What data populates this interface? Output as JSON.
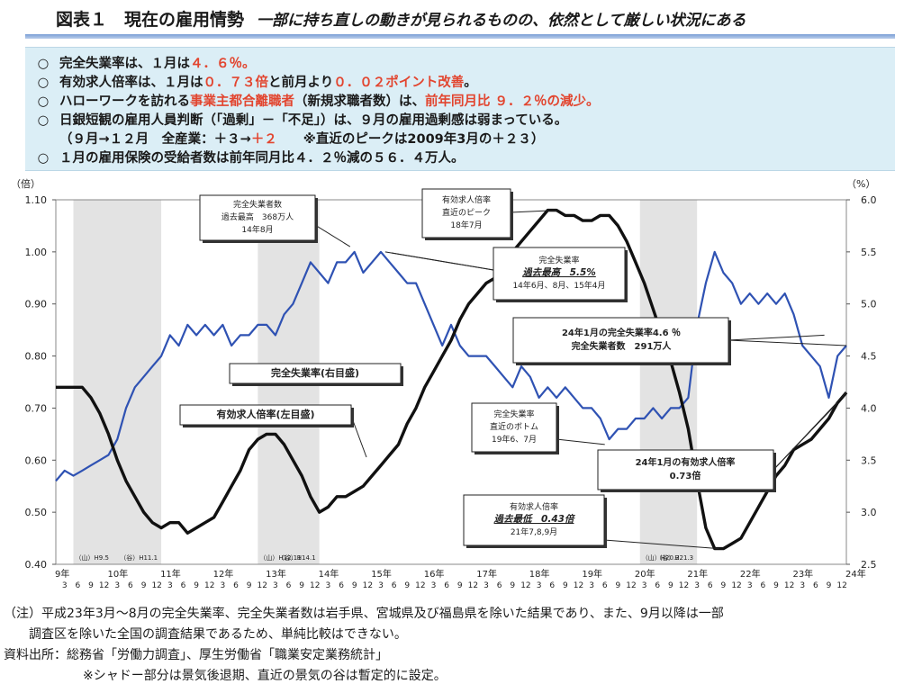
{
  "header": {
    "title": "図表１　現在の雇用情勢",
    "subtitle": "一部に持ち直しの動きが見られるものの、依然として厳しい状況にある"
  },
  "summary": [
    {
      "bullet": "○",
      "parts": [
        {
          "t": "完全失業率は、１月は"
        },
        {
          "t": "４．６％。",
          "red": true
        }
      ]
    },
    {
      "bullet": "○",
      "parts": [
        {
          "t": "有効求人倍率は、１月は"
        },
        {
          "t": "０．７３倍",
          "red": true
        },
        {
          "t": "と前月より"
        },
        {
          "t": "０．０２ポイント改善",
          "red": true
        },
        {
          "t": "。"
        }
      ]
    },
    {
      "bullet": "○",
      "parts": [
        {
          "t": "ハローワークを訪れる"
        },
        {
          "t": "事業主都合離職者",
          "red": true
        },
        {
          "t": "（新規求職者数）は、"
        },
        {
          "t": "前年同月比 ９．２％の減少。",
          "red": true
        }
      ]
    },
    {
      "bullet": "○",
      "parts": [
        {
          "t": "日銀短観の雇用人員判断（「過剰」－「不足」）は、９月の雇用過剰感は弱まっている。"
        }
      ]
    },
    {
      "bullet": "",
      "parts": [
        {
          "t": "（９月→１２月　全産業：＋３→"
        },
        {
          "t": "＋２",
          "red": true
        },
        {
          "t": "　　※直近のピークは2009年3月の＋２３）"
        }
      ]
    },
    {
      "bullet": "○",
      "parts": [
        {
          "t": "１月の雇用保険の受給者数は前年同月比４．２％減の５６．４万人。"
        }
      ]
    }
  ],
  "chart_data": {
    "type": "line",
    "left_axis": {
      "unit": "（倍）",
      "range": [
        0.4,
        1.1
      ],
      "ticks": [
        "0.40",
        "0.50",
        "0.60",
        "0.70",
        "0.80",
        "0.90",
        "1.00",
        "1.10"
      ]
    },
    "right_axis": {
      "unit": "（%）",
      "range": [
        2.5,
        6.0
      ],
      "ticks": [
        "2.5",
        "3.0",
        "3.5",
        "4.0",
        "4.5",
        "5.0",
        "5.5",
        "6.0"
      ]
    },
    "x_start": "1997-01",
    "x_end": "2012-01",
    "year_labels": [
      "9年",
      "10年",
      "11年",
      "12年",
      "13年",
      "14年",
      "15年",
      "16年",
      "17年",
      "18年",
      "19年",
      "20年",
      "21年",
      "22年",
      "23年",
      "24年"
    ],
    "month_ticks": [
      "3",
      "6",
      "9",
      "12"
    ],
    "shading": [
      {
        "from": "1997-05",
        "to": "1999-01",
        "peak_label": "（山）H9.5",
        "trough_label": "（谷）H11.1"
      },
      {
        "from": "2000-11",
        "to": "2002-01",
        "peak_label": "（山）H12.11",
        "trough_label": "（谷）H14.1"
      },
      {
        "from": "2008-02",
        "to": "2009-03",
        "peak_label": "（山）H20.2",
        "trough_label": "（谷）H21.3"
      }
    ],
    "series": [
      {
        "name": "完全失業率(右目盛)",
        "axis": "right",
        "color": "#2f52b3",
        "points": [
          [
            "1997-01",
            3.3
          ],
          [
            "1997-03",
            3.4
          ],
          [
            "1997-05",
            3.35
          ],
          [
            "1997-07",
            3.4
          ],
          [
            "1997-09",
            3.45
          ],
          [
            "1997-11",
            3.5
          ],
          [
            "1998-01",
            3.55
          ],
          [
            "1998-03",
            3.7
          ],
          [
            "1998-05",
            4.0
          ],
          [
            "1998-07",
            4.2
          ],
          [
            "1998-09",
            4.3
          ],
          [
            "1998-11",
            4.4
          ],
          [
            "1999-01",
            4.5
          ],
          [
            "1999-03",
            4.7
          ],
          [
            "1999-05",
            4.6
          ],
          [
            "1999-07",
            4.8
          ],
          [
            "1999-09",
            4.7
          ],
          [
            "1999-11",
            4.8
          ],
          [
            "2000-01",
            4.7
          ],
          [
            "2000-03",
            4.8
          ],
          [
            "2000-05",
            4.6
          ],
          [
            "2000-07",
            4.7
          ],
          [
            "2000-09",
            4.7
          ],
          [
            "2000-11",
            4.8
          ],
          [
            "2001-01",
            4.8
          ],
          [
            "2001-03",
            4.7
          ],
          [
            "2001-05",
            4.9
          ],
          [
            "2001-07",
            5.0
          ],
          [
            "2001-09",
            5.2
          ],
          [
            "2001-11",
            5.4
          ],
          [
            "2002-01",
            5.3
          ],
          [
            "2002-03",
            5.2
          ],
          [
            "2002-05",
            5.4
          ],
          [
            "2002-07",
            5.4
          ],
          [
            "2002-09",
            5.5
          ],
          [
            "2002-11",
            5.3
          ],
          [
            "2003-01",
            5.4
          ],
          [
            "2003-03",
            5.5
          ],
          [
            "2003-05",
            5.4
          ],
          [
            "2003-07",
            5.3
          ],
          [
            "2003-09",
            5.2
          ],
          [
            "2003-11",
            5.2
          ],
          [
            "2004-01",
            5.0
          ],
          [
            "2004-03",
            4.8
          ],
          [
            "2004-05",
            4.6
          ],
          [
            "2004-07",
            4.8
          ],
          [
            "2004-09",
            4.6
          ],
          [
            "2004-11",
            4.5
          ],
          [
            "2005-01",
            4.5
          ],
          [
            "2005-03",
            4.5
          ],
          [
            "2005-05",
            4.4
          ],
          [
            "2005-07",
            4.3
          ],
          [
            "2005-09",
            4.2
          ],
          [
            "2005-11",
            4.4
          ],
          [
            "2006-01",
            4.3
          ],
          [
            "2006-03",
            4.1
          ],
          [
            "2006-05",
            4.2
          ],
          [
            "2006-07",
            4.1
          ],
          [
            "2006-09",
            4.2
          ],
          [
            "2006-11",
            4.1
          ],
          [
            "2007-01",
            4.0
          ],
          [
            "2007-03",
            4.0
          ],
          [
            "2007-05",
            3.9
          ],
          [
            "2007-07",
            3.7
          ],
          [
            "2007-09",
            3.8
          ],
          [
            "2007-11",
            3.8
          ],
          [
            "2008-01",
            3.9
          ],
          [
            "2008-03",
            3.9
          ],
          [
            "2008-05",
            4.0
          ],
          [
            "2008-07",
            3.9
          ],
          [
            "2008-09",
            4.0
          ],
          [
            "2008-11",
            4.0
          ],
          [
            "2009-01",
            4.1
          ],
          [
            "2009-03",
            4.8
          ],
          [
            "2009-05",
            5.2
          ],
          [
            "2009-07",
            5.5
          ],
          [
            "2009-09",
            5.3
          ],
          [
            "2009-11",
            5.2
          ],
          [
            "2010-01",
            5.0
          ],
          [
            "2010-03",
            5.1
          ],
          [
            "2010-05",
            5.0
          ],
          [
            "2010-07",
            5.1
          ],
          [
            "2010-09",
            5.0
          ],
          [
            "2010-11",
            5.1
          ],
          [
            "2011-01",
            4.9
          ],
          [
            "2011-03",
            4.6
          ],
          [
            "2011-05",
            4.5
          ],
          [
            "2011-07",
            4.4
          ],
          [
            "2011-09",
            4.1
          ],
          [
            "2011-11",
            4.5
          ],
          [
            "2012-01",
            4.6
          ]
        ]
      },
      {
        "name": "有効求人倍率(左目盛)",
        "axis": "left",
        "color": "#111111",
        "points": [
          [
            "1997-01",
            0.74
          ],
          [
            "1997-07",
            0.74
          ],
          [
            "1997-09",
            0.72
          ],
          [
            "1997-11",
            0.69
          ],
          [
            "1998-01",
            0.65
          ],
          [
            "1998-03",
            0.6
          ],
          [
            "1998-05",
            0.56
          ],
          [
            "1998-07",
            0.53
          ],
          [
            "1998-09",
            0.5
          ],
          [
            "1998-11",
            0.48
          ],
          [
            "1999-01",
            0.47
          ],
          [
            "1999-03",
            0.48
          ],
          [
            "1999-05",
            0.48
          ],
          [
            "1999-07",
            0.46
          ],
          [
            "1999-09",
            0.47
          ],
          [
            "1999-11",
            0.48
          ],
          [
            "2000-01",
            0.49
          ],
          [
            "2000-03",
            0.52
          ],
          [
            "2000-05",
            0.55
          ],
          [
            "2000-07",
            0.58
          ],
          [
            "2000-09",
            0.62
          ],
          [
            "2000-11",
            0.64
          ],
          [
            "2001-01",
            0.65
          ],
          [
            "2001-03",
            0.65
          ],
          [
            "2001-05",
            0.63
          ],
          [
            "2001-07",
            0.6
          ],
          [
            "2001-09",
            0.57
          ],
          [
            "2001-11",
            0.53
          ],
          [
            "2002-01",
            0.5
          ],
          [
            "2002-03",
            0.51
          ],
          [
            "2002-05",
            0.53
          ],
          [
            "2002-07",
            0.53
          ],
          [
            "2002-09",
            0.54
          ],
          [
            "2002-11",
            0.55
          ],
          [
            "2003-01",
            0.57
          ],
          [
            "2003-03",
            0.59
          ],
          [
            "2003-05",
            0.61
          ],
          [
            "2003-07",
            0.63
          ],
          [
            "2003-09",
            0.67
          ],
          [
            "2003-11",
            0.7
          ],
          [
            "2004-01",
            0.74
          ],
          [
            "2004-03",
            0.77
          ],
          [
            "2004-05",
            0.8
          ],
          [
            "2004-07",
            0.83
          ],
          [
            "2004-09",
            0.87
          ],
          [
            "2004-11",
            0.9
          ],
          [
            "2005-01",
            0.92
          ],
          [
            "2005-03",
            0.94
          ],
          [
            "2005-05",
            0.95
          ],
          [
            "2005-07",
            0.97
          ],
          [
            "2005-09",
            1.0
          ],
          [
            "2005-11",
            1.02
          ],
          [
            "2006-01",
            1.04
          ],
          [
            "2006-03",
            1.06
          ],
          [
            "2006-05",
            1.08
          ],
          [
            "2006-07",
            1.08
          ],
          [
            "2006-09",
            1.07
          ],
          [
            "2006-11",
            1.07
          ],
          [
            "2007-01",
            1.06
          ],
          [
            "2007-03",
            1.06
          ],
          [
            "2007-05",
            1.07
          ],
          [
            "2007-07",
            1.07
          ],
          [
            "2007-09",
            1.05
          ],
          [
            "2007-11",
            1.02
          ],
          [
            "2008-01",
            0.98
          ],
          [
            "2008-03",
            0.94
          ],
          [
            "2008-05",
            0.89
          ],
          [
            "2008-07",
            0.84
          ],
          [
            "2008-09",
            0.79
          ],
          [
            "2008-11",
            0.73
          ],
          [
            "2009-01",
            0.66
          ],
          [
            "2009-03",
            0.56
          ],
          [
            "2009-05",
            0.47
          ],
          [
            "2009-07",
            0.43
          ],
          [
            "2009-09",
            0.43
          ],
          [
            "2009-11",
            0.44
          ],
          [
            "2010-01",
            0.45
          ],
          [
            "2010-03",
            0.48
          ],
          [
            "2010-05",
            0.51
          ],
          [
            "2010-07",
            0.54
          ],
          [
            "2010-09",
            0.57
          ],
          [
            "2010-11",
            0.59
          ],
          [
            "2011-01",
            0.62
          ],
          [
            "2011-03",
            0.63
          ],
          [
            "2011-05",
            0.64
          ],
          [
            "2011-07",
            0.66
          ],
          [
            "2011-09",
            0.68
          ],
          [
            "2011-11",
            0.71
          ],
          [
            "2012-01",
            0.73
          ]
        ]
      }
    ],
    "annotations": [
      {
        "id": "max-unemployed",
        "lines": [
          "完全失業者数",
          "過去最高　368万人",
          "14年8月"
        ]
      },
      {
        "id": "ratio-peak",
        "lines": [
          "有効求人倍率",
          "直近のピーク",
          "18年7月"
        ]
      },
      {
        "id": "rate-max",
        "lines": [
          "完全失業率",
          "過去最高　5.5%",
          "14年6月、8月、15年4月"
        ]
      },
      {
        "id": "latest-rate",
        "lines": [
          "24年1月の完全失業率4.6 ％",
          "完全失業者数　291万人"
        ]
      },
      {
        "id": "rate-label",
        "lines": [
          "完全失業率(右目盛)"
        ]
      },
      {
        "id": "ratio-label",
        "lines": [
          "有効求人倍率(左目盛)"
        ]
      },
      {
        "id": "rate-bottom",
        "lines": [
          "完全失業率",
          "直近のボトム",
          "19年6、7月"
        ]
      },
      {
        "id": "latest-ratio",
        "lines": [
          "24年1月の有効求人倍率",
          "0.73倍"
        ]
      },
      {
        "id": "ratio-min",
        "lines": [
          "有効求人倍率",
          "過去最低　0.43倍",
          "21年7,8,9月"
        ]
      }
    ]
  },
  "notes": {
    "line1": "（注）平成23年3月～8月の完全失業率、完全失業者数は岩手県、宮城県及び福島県を除いた結果であり、また、9月以降は一部",
    "line2": "調査区を除いた全国の調査結果であるため、単純比較はできない。",
    "line3": "資料出所：総務省「労働力調査」、厚生労働省「職業安定業務統計」",
    "line4": "※シャドー部分は景気後退期、直近の景気の谷は暫定的に設定。"
  }
}
